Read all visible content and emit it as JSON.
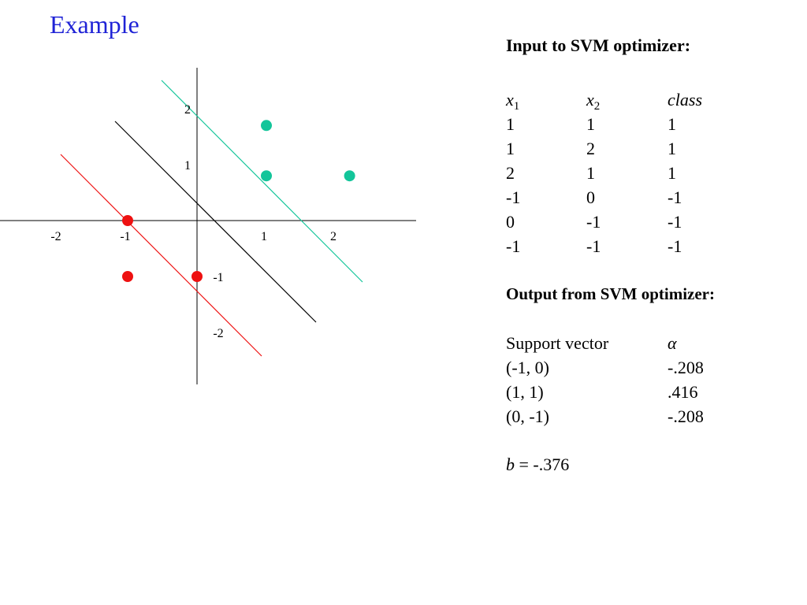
{
  "slide": {
    "title": "Example"
  },
  "colors": {
    "title": "#1f23d6",
    "positive": "#13c59a",
    "negative": "#ee1111",
    "decision_boundary": "#000000"
  },
  "diagram": {
    "x_ticks": [
      {
        "value": -2,
        "label": "-2"
      },
      {
        "value": -1,
        "label": "-1"
      },
      {
        "value": 1,
        "label": "1"
      },
      {
        "value": 2,
        "label": "2"
      }
    ],
    "y_ticks": [
      {
        "value": 2,
        "label": "2"
      },
      {
        "value": 1,
        "label": "1"
      },
      {
        "value": -1,
        "label": "-1"
      },
      {
        "value": -2,
        "label": "-2"
      }
    ],
    "points": [
      {
        "x": 1,
        "y": 1.7,
        "class": "positive"
      },
      {
        "x": 1,
        "y": 0.8,
        "class": "positive"
      },
      {
        "x": 2.2,
        "y": 0.8,
        "class": "positive"
      },
      {
        "x": -1,
        "y": 0,
        "class": "negative"
      },
      {
        "x": -1,
        "y": -1,
        "class": "negative"
      },
      {
        "x": 0,
        "y": -1,
        "class": "negative"
      }
    ]
  },
  "input": {
    "heading": "Input to SVM optimizer:",
    "headers": {
      "x1": "x",
      "x1_sub": "1",
      "x2": "x",
      "x2_sub": "2",
      "class": "class"
    },
    "rows": [
      [
        "1",
        "1",
        "1"
      ],
      [
        "1",
        "2",
        "1"
      ],
      [
        "2",
        "1",
        "1"
      ],
      [
        "-1",
        "0",
        "-1"
      ],
      [
        "0",
        "-1",
        "-1"
      ],
      [
        "-1",
        "-1",
        "-1"
      ]
    ]
  },
  "output": {
    "heading": "Output from SVM optimizer:",
    "headers": {
      "support_vector": "Support vector",
      "alpha": "α"
    },
    "rows": [
      [
        "(-1, 0)",
        "-.208"
      ],
      [
        "(1, 1)",
        ".416"
      ],
      [
        "(0, -1)",
        "-.208"
      ]
    ]
  },
  "bias": {
    "symbol": "b",
    "text": " = -.376"
  }
}
